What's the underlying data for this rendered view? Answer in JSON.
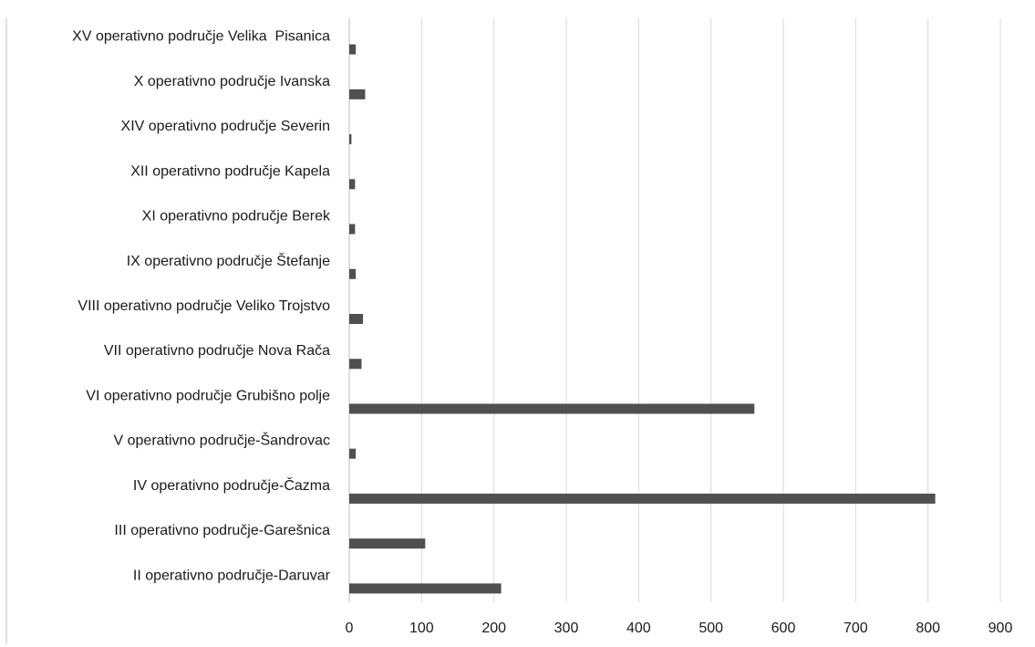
{
  "chart_data": {
    "type": "bar",
    "orientation": "horizontal",
    "categories": [
      "XV operativno područje Velika  Pisanica",
      "X operativno područje Ivanska",
      "XIV operativno područje Severin",
      "XII operativno područje Kapela",
      "XI operativno područje Berek",
      "IX operativno područje Štefanje",
      "VIII operativno područje Veliko Trojstvo",
      "VII operativno područje Nova Rača",
      "VI operativno područje Grubišno polje",
      "V operativno područje-Šandrovac",
      "IV operativno područje-Čazma",
      "III operativno područje-Garešnica",
      "II operativno područje-Daruvar"
    ],
    "values": [
      9,
      22,
      3,
      8,
      8,
      9,
      19,
      17,
      560,
      9,
      810,
      105,
      210
    ],
    "xlim": [
      0,
      900
    ],
    "xticks": [
      "0",
      "100",
      "200",
      "300",
      "400",
      "500",
      "600",
      "700",
      "800",
      "900"
    ],
    "title": "",
    "xlabel": "",
    "ylabel": "",
    "grid": "vertical",
    "legend": "none",
    "bar_color": "#505050"
  }
}
